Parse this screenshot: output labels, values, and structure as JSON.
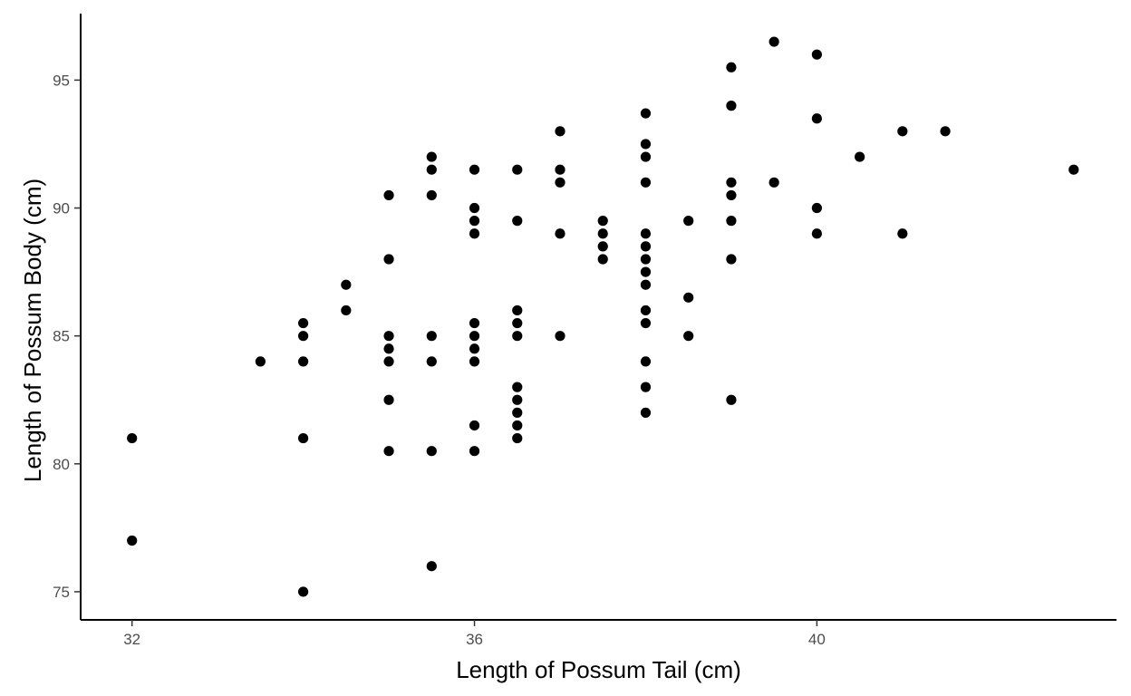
{
  "chart_data": {
    "type": "scatter",
    "xlabel": "Length of Possum Tail (cm)",
    "ylabel": "Length of Possum Body (cm)",
    "xlim": [
      31.4,
      43.5
    ],
    "ylim": [
      73.9,
      97.6
    ],
    "xticks": [
      32,
      36,
      40
    ],
    "yticks": [
      75,
      80,
      85,
      90,
      95
    ],
    "grid": false,
    "point_color": "#000000",
    "axis_color": "#000000",
    "points": [
      [
        32,
        81
      ],
      [
        32,
        77
      ],
      [
        33.5,
        84
      ],
      [
        34,
        85.5
      ],
      [
        34,
        85
      ],
      [
        34,
        84
      ],
      [
        34,
        81
      ],
      [
        34,
        75
      ],
      [
        34.5,
        87
      ],
      [
        34.5,
        86
      ],
      [
        35,
        90.5
      ],
      [
        35,
        88
      ],
      [
        35,
        85
      ],
      [
        35,
        84.5
      ],
      [
        35,
        84
      ],
      [
        35,
        82.5
      ],
      [
        35,
        80.5
      ],
      [
        35.5,
        92
      ],
      [
        35.5,
        91.5
      ],
      [
        35.5,
        90.5
      ],
      [
        35.5,
        85
      ],
      [
        35.5,
        84
      ],
      [
        35.5,
        80.5
      ],
      [
        35.5,
        76
      ],
      [
        36,
        91.5
      ],
      [
        36,
        90
      ],
      [
        36,
        89.5
      ],
      [
        36,
        89
      ],
      [
        36,
        85.5
      ],
      [
        36,
        85
      ],
      [
        36,
        84.5
      ],
      [
        36,
        84
      ],
      [
        36,
        81.5
      ],
      [
        36,
        80.5
      ],
      [
        36.5,
        91.5
      ],
      [
        36.5,
        89.5
      ],
      [
        36.5,
        86
      ],
      [
        36.5,
        85.5
      ],
      [
        36.5,
        85
      ],
      [
        36.5,
        83
      ],
      [
        36.5,
        82.5
      ],
      [
        36.5,
        82
      ],
      [
        36.5,
        81.5
      ],
      [
        36.5,
        81
      ],
      [
        37,
        93
      ],
      [
        37,
        91.5
      ],
      [
        37,
        91
      ],
      [
        37,
        89
      ],
      [
        37,
        85
      ],
      [
        37.5,
        89.5
      ],
      [
        37.5,
        89
      ],
      [
        37.5,
        88.5
      ],
      [
        37.5,
        88
      ],
      [
        38,
        93.7
      ],
      [
        38,
        92.5
      ],
      [
        38,
        92
      ],
      [
        38,
        91
      ],
      [
        38,
        89
      ],
      [
        38,
        88.5
      ],
      [
        38,
        88
      ],
      [
        38,
        87.5
      ],
      [
        38,
        87
      ],
      [
        38,
        86
      ],
      [
        38,
        85.5
      ],
      [
        38,
        84
      ],
      [
        38,
        83
      ],
      [
        38,
        82
      ],
      [
        38.5,
        89.5
      ],
      [
        38.5,
        86.5
      ],
      [
        38.5,
        85
      ],
      [
        39,
        95.5
      ],
      [
        39,
        94
      ],
      [
        39,
        91
      ],
      [
        39,
        90.5
      ],
      [
        39,
        89.5
      ],
      [
        39,
        88
      ],
      [
        39,
        82.5
      ],
      [
        39.5,
        96.5
      ],
      [
        39.5,
        91
      ],
      [
        40,
        96
      ],
      [
        40,
        93.5
      ],
      [
        40,
        90
      ],
      [
        40,
        89
      ],
      [
        40.5,
        92
      ],
      [
        41,
        93
      ],
      [
        41,
        89
      ],
      [
        41.5,
        93
      ],
      [
        43,
        91.5
      ]
    ]
  }
}
